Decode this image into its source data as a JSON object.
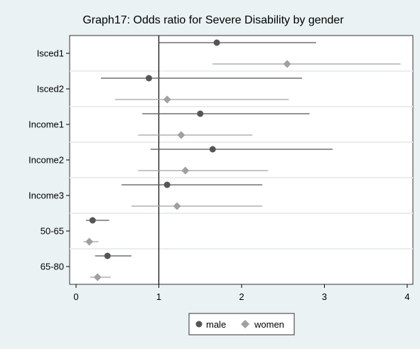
{
  "chart_data": {
    "type": "scatter",
    "title": "Graph17: Odds ratio for Severe Disability by gender",
    "xlabel": "",
    "ylabel": "",
    "xlim": [
      0,
      4
    ],
    "x_ticks": [
      0,
      1,
      2,
      3,
      4
    ],
    "reference_line_x": 1,
    "grid": "horizontal",
    "legend_position": "bottom",
    "categories": [
      "Isced1",
      "Isced2",
      "Income1",
      "Income2",
      "Income3",
      "50-65",
      "65-80"
    ],
    "series": [
      {
        "name": "male",
        "marker": "circle",
        "color": "#555555",
        "estimates": [
          1.7,
          0.88,
          1.5,
          1.65,
          1.1,
          0.2,
          0.38
        ],
        "lower": [
          1.0,
          0.3,
          0.8,
          0.9,
          0.55,
          0.12,
          0.23
        ],
        "upper": [
          2.9,
          2.73,
          2.82,
          3.1,
          2.25,
          0.4,
          0.67
        ]
      },
      {
        "name": "women",
        "marker": "diamond",
        "color": "#a0a0a0",
        "estimates": [
          2.55,
          1.1,
          1.27,
          1.32,
          1.22,
          0.16,
          0.26
        ],
        "lower": [
          1.65,
          0.47,
          0.75,
          0.75,
          0.67,
          0.09,
          0.17
        ],
        "upper": [
          3.92,
          2.57,
          2.13,
          2.32,
          2.25,
          0.27,
          0.42
        ]
      }
    ]
  }
}
